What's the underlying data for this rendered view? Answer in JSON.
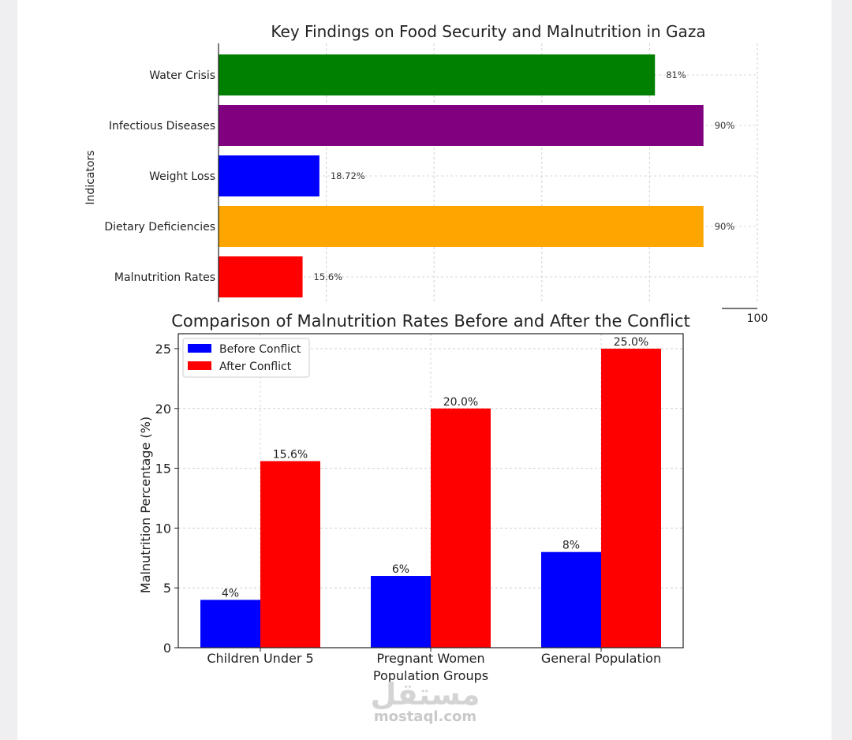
{
  "chart_data": [
    {
      "type": "bar",
      "orientation": "horizontal",
      "title": "Key Findings on Food Security and Malnutrition in Gaza",
      "ylabel": "Indicators",
      "xlabel": "",
      "xlim": [
        0,
        100
      ],
      "x_tick_visible": "100",
      "grid": true,
      "categories": [
        "Water Crisis",
        "Infectious Diseases",
        "Weight Loss",
        "Dietary Deficiencies",
        "Malnutrition Rates"
      ],
      "values": [
        81,
        90,
        18.72,
        90,
        15.6
      ],
      "value_labels": [
        "81%",
        "90%",
        "18.72%",
        "90%",
        "15.6%"
      ],
      "colors": [
        "#008000",
        "#800080",
        "#0000ff",
        "#ffa500",
        "#ff0000"
      ]
    },
    {
      "type": "bar",
      "title": "Comparison of Malnutrition Rates Before and After the Conflict",
      "xlabel": "Population Groups",
      "ylabel": "Malnutrition Percentage (%)",
      "ylim": [
        0,
        26.25
      ],
      "yticks": [
        "0",
        "5",
        "10",
        "15",
        "20",
        "25"
      ],
      "grid": true,
      "legend_position": "top-left",
      "categories": [
        "Children Under 5",
        "Pregnant Women",
        "General Population"
      ],
      "series": [
        {
          "name": "Before Conflict",
          "color": "#0000ff",
          "values": [
            4,
            6,
            8
          ],
          "labels": [
            "4%",
            "6%",
            "8%"
          ]
        },
        {
          "name": "After Conflict",
          "color": "#ff0000",
          "values": [
            15.6,
            20,
            25
          ],
          "labels": [
            "15.6%",
            "20.0%",
            "25.0%"
          ]
        }
      ]
    }
  ],
  "watermark": {
    "logo_text": "مستقل",
    "site": "mostaql.com"
  }
}
